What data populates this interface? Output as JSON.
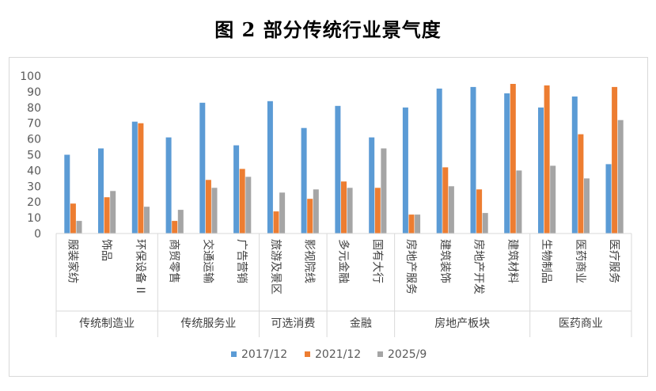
{
  "chart_data": {
    "type": "bar",
    "title": "图 2 部分传统行业景气度",
    "ylim": [
      0,
      100
    ],
    "yticks": [
      0,
      10,
      20,
      30,
      40,
      50,
      60,
      70,
      80,
      90,
      100
    ],
    "grid": false,
    "legend_position": "bottom",
    "categories": [
      "服装家纺",
      "饰品",
      "环保设备 II",
      "商贸零售",
      "交通运输",
      "广告营销",
      "旅游及景区",
      "影视院线",
      "多元金融",
      "国有大行",
      "房地产服务",
      "建筑装饰",
      "房地产开发",
      "建筑材料",
      "生物制品",
      "医药商业",
      "医疗服务"
    ],
    "groups": [
      {
        "label": "传统制造业",
        "count": 3
      },
      {
        "label": "传统服务业",
        "count": 3
      },
      {
        "label": "可选消费",
        "count": 2
      },
      {
        "label": "金融",
        "count": 2
      },
      {
        "label": "房地产板块",
        "count": 4
      },
      {
        "label": "医药商业",
        "count": 3
      }
    ],
    "series": [
      {
        "name": "2017/12",
        "color": "#5b9bd5",
        "values": [
          50,
          54,
          71,
          61,
          83,
          56,
          84,
          67,
          81,
          61,
          80,
          92,
          93,
          89,
          80,
          87,
          44
        ]
      },
      {
        "name": "2021/12",
        "color": "#ed7d31",
        "values": [
          19,
          23,
          70,
          8,
          34,
          41,
          14,
          22,
          33,
          29,
          12,
          42,
          28,
          95,
          94,
          63,
          93
        ]
      },
      {
        "name": "2025/9",
        "color": "#a5a5a5",
        "values": [
          8,
          27,
          17,
          15,
          29,
          36,
          26,
          28,
          29,
          54,
          12,
          30,
          13,
          40,
          43,
          35,
          72
        ]
      }
    ]
  }
}
